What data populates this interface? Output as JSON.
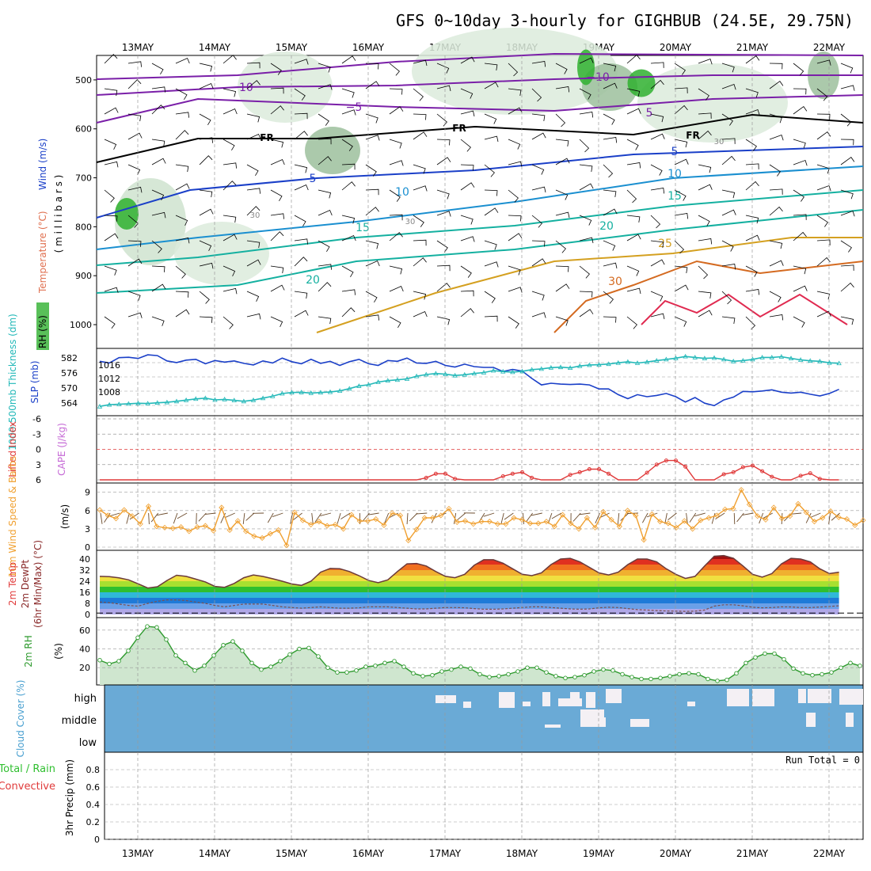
{
  "title": "GFS 0~10day 3-hourly for GIGHBUB (24.5E, 29.75N)",
  "dates": [
    "13MAY",
    "14MAY",
    "15MAY",
    "16MAY",
    "17MAY",
    "18MAY",
    "19MAY",
    "20MAY",
    "21MAY",
    "22MAY"
  ],
  "colors": {
    "axis": "#000000",
    "grid": "#9a9a9a",
    "slp": "#1a3fc8",
    "thickness": "#22b8b8",
    "lifted": "#e03a3a",
    "cape": "#c66bd6",
    "wind10": "#f0a030",
    "barb": "#6b4a2a",
    "rh2m": "#2e9a2e",
    "cloud": "#6aaad6",
    "cloudClear": "#f4f0f4",
    "precipConv": "#e03a3a",
    "precipTotal": "#2fbf2f",
    "tempTrace": "#6b3a3a",
    "dewTrace": "#7a5050"
  },
  "chart_data": [
    {
      "panel": "upper-air",
      "type": "heatmap",
      "ylabel_parts": [
        "RH (%)",
        "Temperature (°C)",
        "Wind (m/s)"
      ],
      "ylabel_unit": "( m i l l i b a r s )",
      "yticks": [
        "500",
        "600",
        "700",
        "800",
        "900",
        "1000"
      ],
      "ylim": [
        1000,
        450
      ],
      "freezing_label": "FR",
      "contour_labels": [
        "−10",
        "−5",
        "5",
        "10",
        "15",
        "20",
        "25",
        "30",
        "30",
        "5",
        "10",
        "15",
        "−5"
      ],
      "rh_label": "30",
      "grid": true
    },
    {
      "panel": "slp-thickness",
      "type": "line",
      "ylabel_left": "1000-500mb Thickness (dm)",
      "ylabel_right": "SLP (mb)",
      "yticks_thickness": [
        "582",
        "576",
        "570",
        "564"
      ],
      "yticks_slp": [
        "1016",
        "1012",
        "1008"
      ],
      "series": [
        {
          "name": "SLP (mb)",
          "values": [
            1016.6,
            1016.2,
            1017.5,
            1017.6,
            1017.3,
            1018.2,
            1018.0,
            1016.7,
            1016.3,
            1016.9,
            1017.1,
            1016.0,
            1016.8,
            1016.4,
            1016.7,
            1016.1,
            1015.7,
            1016.7,
            1016.2,
            1017.4,
            1016.5,
            1016.0,
            1017.1,
            1016.1,
            1016.6,
            1015.6,
            1016.5,
            1017.1,
            1016.0,
            1015.6,
            1016.8,
            1016.6,
            1017.4,
            1016.2,
            1016.1,
            1016.6,
            1015.6,
            1015.2,
            1015.9,
            1015.3,
            1015.1,
            1015.1,
            1014.1,
            1014.6,
            1014.2,
            1012.4,
            1010.8,
            1011.2,
            1011.0,
            1010.9,
            1011.0,
            1010.8,
            1009.8,
            1009.8,
            1008.4,
            1007.4,
            1008.4,
            1007.9,
            1008.2,
            1008.7,
            1007.9,
            1006.6,
            1007.7,
            1006.3,
            1005.7,
            1007.1,
            1007.8,
            1009.2,
            1009.1,
            1009.3,
            1009.6,
            1009.0,
            1008.8,
            1009.0,
            1008.5,
            1008.1,
            1008.7,
            1009.7
          ]
        },
        {
          "name": "1000-500mb Thickness (dm)",
          "values": [
            563.5,
            564.2,
            564.4,
            564.6,
            564.8,
            564.7,
            565.0,
            565.2,
            565.6,
            566.1,
            566.6,
            566.9,
            566.2,
            566.4,
            566.0,
            565.6,
            566.1,
            566.9,
            567.7,
            568.8,
            569.2,
            569.3,
            569.0,
            569.2,
            569.4,
            569.9,
            570.8,
            571.9,
            572.4,
            573.5,
            574.1,
            574.4,
            574.8,
            575.9,
            576.6,
            577.0,
            576.7,
            576.2,
            576.5,
            577.0,
            577.4,
            578.2,
            577.8,
            577.6,
            577.9,
            578.6,
            578.9,
            579.4,
            579.6,
            579.3,
            580.1,
            580.5,
            580.6,
            580.9,
            581.4,
            581.8,
            581.3,
            581.7,
            582.3,
            582.8,
            583.3,
            584.0,
            583.6,
            583.2,
            583.4,
            582.8,
            582.0,
            582.3,
            582.8,
            583.6,
            583.6,
            583.9,
            583.2,
            582.6,
            582.2,
            582.0,
            581.4,
            581.2
          ]
        }
      ]
    },
    {
      "panel": "cape-li",
      "type": "line",
      "ylabel_left": "CAPE (J/kg)",
      "ylabel_right": "Lifted Index",
      "yticks": [
        "-6",
        "-3",
        "0",
        "3",
        "6"
      ],
      "ylim": [
        6,
        -6
      ],
      "series": [
        {
          "name": "Lifted Index",
          "values": [
            6,
            6,
            6,
            6,
            6,
            6,
            6,
            6,
            6,
            6,
            6,
            6,
            6,
            6,
            6,
            6,
            6,
            6,
            6,
            6,
            6,
            6,
            6,
            6,
            6,
            6,
            6,
            6,
            6,
            6,
            6,
            6,
            6,
            6,
            5.6,
            4.8,
            4.8,
            5.8,
            6,
            6,
            6,
            6,
            5.3,
            4.8,
            4.5,
            5.6,
            6,
            6,
            6,
            5,
            4.5,
            3.9,
            3.9,
            4.8,
            6,
            6,
            6,
            4.6,
            3.0,
            2.2,
            2.2,
            3.4,
            6,
            6,
            6,
            4.9,
            4.5,
            3.5,
            3.2,
            4.3,
            5.4,
            6,
            6,
            5.2,
            4.7,
            5.8,
            6,
            6
          ]
        }
      ]
    },
    {
      "panel": "wind10m",
      "type": "line",
      "ylabel_left": "10m Wind Speed & Barbs",
      "ylabel_right": "(m/s)",
      "yticks": [
        "0",
        "3",
        "6",
        "9"
      ],
      "ylim": [
        0,
        10
      ],
      "series": [
        {
          "name": "10m Wind Speed",
          "values": [
            6.1,
            5.2,
            4.7,
            6.1,
            5.1,
            3.8,
            6.7,
            3.4,
            3.2,
            3.1,
            3.3,
            2.6,
            3.3,
            3.5,
            2.7,
            6.5,
            2.8,
            4.3,
            2.6,
            1.8,
            1.5,
            2.2,
            2.8,
            0.3,
            5.7,
            4.4,
            3.7,
            4.2,
            3.5,
            3.7,
            3.0,
            5.3,
            4.3,
            4.3,
            4.6,
            3.6,
            5.6,
            5.2,
            1.1,
            2.9,
            4.8,
            4.8,
            5.2,
            6.3,
            4.1,
            4.3,
            3.8,
            4.2,
            4.2,
            3.8,
            3.8,
            4.8,
            4.5,
            3.9,
            3.9,
            4.2,
            3.4,
            5.3,
            3.9,
            3.0,
            4.8,
            3.2,
            5.8,
            4.5,
            3.4,
            6.0,
            5.2,
            1.2,
            5.4,
            4.2,
            3.9,
            3.2,
            4.3,
            3.0,
            4.4,
            4.8,
            5.2,
            6.2,
            6.3,
            9.4,
            7.0,
            5.1,
            4.5,
            6.5,
            4.7,
            5.1,
            7.1,
            5.7,
            4.2,
            4.8,
            5.9,
            4.9,
            4.6,
            3.6,
            4.4
          ]
        }
      ]
    },
    {
      "panel": "temp2m",
      "type": "area",
      "ylabel_lines": [
        "2m Temp",
        "2m DewPt",
        "(6hr Min/Max) (°C)"
      ],
      "yticks": [
        "0",
        "8",
        "16",
        "24",
        "32",
        "40"
      ],
      "ylim": [
        0,
        44
      ],
      "series": [
        {
          "name": "2m Temp",
          "values": [
            27.5,
            27.3,
            26.4,
            25.0,
            22.1,
            19.1,
            20.0,
            24.5,
            28.3,
            27.5,
            25.5,
            23.5,
            20.2,
            19.6,
            22.4,
            26.5,
            28.5,
            27.4,
            25.8,
            24.0,
            22.0,
            21.0,
            24.0,
            30.5,
            33.2,
            33.0,
            31.0,
            28.0,
            24.5,
            23.0,
            25.0,
            31.0,
            36.5,
            36.8,
            35.0,
            31.0,
            27.5,
            26.5,
            29.0,
            35.5,
            39.5,
            39.5,
            37.0,
            33.0,
            29.0,
            28.0,
            30.0,
            36.0,
            40.0,
            40.5,
            38.0,
            34.0,
            30.0,
            28.5,
            30.5,
            36.0,
            40.0,
            40.0,
            38.0,
            33.0,
            29.0,
            26.0,
            27.5,
            35.0,
            42.0,
            42.5,
            40.5,
            35.0,
            29.0,
            27.0,
            29.5,
            36.5,
            40.5,
            40.0,
            38.0,
            33.0,
            29.5,
            30.5
          ]
        },
        {
          "name": "2m DewPt",
          "values": [
            9.0,
            8.5,
            7.5,
            6.5,
            6.0,
            8.0,
            9.5,
            10.5,
            10.5,
            10.0,
            9.0,
            8.0,
            6.5,
            5.5,
            6.5,
            7.5,
            7.5,
            7.5,
            6.5,
            5.5,
            5.0,
            4.5,
            5.0,
            5.5,
            5.0,
            4.5,
            4.5,
            4.8,
            5.5,
            5.5,
            5.5,
            5.0,
            4.5,
            4.0,
            4.0,
            4.5,
            5.0,
            5.0,
            4.8,
            4.2,
            3.8,
            3.8,
            4.0,
            4.5,
            5.0,
            5.5,
            5.5,
            5.0,
            4.5,
            4.0,
            3.8,
            4.0,
            4.8,
            5.2,
            5.0,
            4.2,
            3.5,
            3.2,
            2.8,
            2.5,
            2.4,
            2.2,
            2.4,
            3.2,
            6.0,
            7.0,
            7.0,
            6.2,
            5.2,
            4.8,
            5.0,
            5.5,
            5.4,
            5.0,
            5.0,
            5.3,
            5.8,
            6.2
          ]
        }
      ]
    },
    {
      "panel": "rh2m",
      "type": "area",
      "ylabel_left": "2m RH",
      "ylabel_right": "(%)",
      "yticks": [
        "20",
        "40",
        "60"
      ],
      "ylim": [
        5,
        70
      ],
      "series": [
        {
          "name": "2m RH",
          "values": [
            28,
            24,
            27,
            38,
            52,
            64,
            63,
            50,
            33,
            25,
            17,
            22,
            33,
            44,
            48,
            38,
            25,
            18,
            21,
            27,
            34,
            40,
            41,
            32,
            20,
            15,
            15,
            17,
            21,
            22,
            25,
            27,
            21,
            14,
            11,
            12,
            16,
            18,
            21,
            19,
            13,
            10,
            11,
            13,
            16,
            20,
            20,
            15,
            11,
            9,
            10,
            12,
            16,
            18,
            17,
            13,
            10,
            8,
            8,
            9,
            11,
            13,
            14,
            13,
            8,
            6,
            7,
            14,
            25,
            31,
            35,
            35,
            29,
            19,
            14,
            12,
            13,
            15,
            20,
            25,
            22
          ]
        }
      ]
    },
    {
      "panel": "cloud",
      "type": "heatmap",
      "ylabel": "Cloud Cover (%)",
      "levels": [
        "high",
        "middle",
        "low"
      ]
    },
    {
      "panel": "precip",
      "type": "bar",
      "ylabel_left_lines": [
        "Total / Rain",
        "Convective"
      ],
      "ylabel_right": "3hr Precip (mm)",
      "yticks": [
        "0",
        "0.2",
        "0.4",
        "0.6",
        "0.8"
      ],
      "ylim": [
        0,
        1
      ],
      "run_total": "Run Total = 0",
      "values": []
    }
  ]
}
